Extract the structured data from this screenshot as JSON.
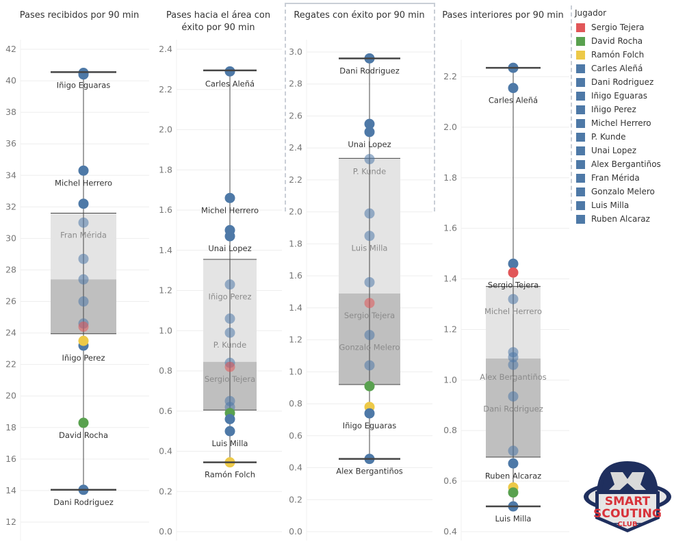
{
  "colors": {
    "Sergio Tejera": "#e15759",
    "David Rocha": "#59a14f",
    "Ramón Folch": "#edc948",
    "default": "#4e79a7",
    "box_upper": "#e4e4e4",
    "box_lower": "#bfbfbf",
    "whisker": "#444444",
    "grid": "#eeeeee"
  },
  "legend": {
    "title": "Jugador",
    "items": [
      {
        "label": "Sergio Tejera",
        "color": "#e15759"
      },
      {
        "label": "David Rocha",
        "color": "#59a14f"
      },
      {
        "label": "Ramón Folch",
        "color": "#edc948"
      },
      {
        "label": "Carles Aleñá",
        "color": "#4e79a7"
      },
      {
        "label": "Dani Rodriguez",
        "color": "#4e79a7"
      },
      {
        "label": "Iñigo Eguaras",
        "color": "#4e79a7"
      },
      {
        "label": "Iñigo Perez",
        "color": "#4e79a7"
      },
      {
        "label": "Michel Herrero",
        "color": "#4e79a7"
      },
      {
        "label": "P. Kunde",
        "color": "#4e79a7"
      },
      {
        "label": "Unai Lopez",
        "color": "#4e79a7"
      },
      {
        "label": "Alex Bergantiños",
        "color": "#4e79a7"
      },
      {
        "label": "Fran Mérida",
        "color": "#4e79a7"
      },
      {
        "label": "Gonzalo Melero",
        "color": "#4e79a7"
      },
      {
        "label": "Luis Milla",
        "color": "#4e79a7"
      },
      {
        "label": "Ruben Alcaraz",
        "color": "#4e79a7"
      }
    ]
  },
  "logo": {
    "line1": "SMART",
    "line2": "SCOUTING",
    "line3": "CLUB"
  },
  "chart_data": [
    {
      "type": "scatter",
      "subtype": "box-plot",
      "title": "Pases recibidos por 90 min",
      "ylim": [
        11,
        43
      ],
      "yticks": [
        12,
        14,
        16,
        18,
        20,
        22,
        24,
        26,
        28,
        30,
        32,
        34,
        36,
        38,
        40,
        42
      ],
      "tick_decimals": 0,
      "box": {
        "whisker_high": 40.55,
        "q3": 31.6,
        "median": 27.4,
        "q1": 23.95,
        "whisker_low": 14.05
      },
      "points": [
        {
          "value": 40.5,
          "player": "Iñigo Eguaras",
          "label": "Iñigo Eguaras"
        },
        {
          "value": 40.4,
          "player": "other",
          "label": ""
        },
        {
          "value": 34.3,
          "player": "Michel Herrero",
          "label": "Michel Herrero"
        },
        {
          "value": 32.2,
          "player": "other",
          "label": ""
        },
        {
          "value": 31.0,
          "player": "Fran Mérida",
          "label": "Fran Mérida"
        },
        {
          "value": 28.7,
          "player": "other",
          "label": ""
        },
        {
          "value": 27.4,
          "player": "other",
          "label": ""
        },
        {
          "value": 26.0,
          "player": "other",
          "label": ""
        },
        {
          "value": 24.6,
          "player": "other",
          "label": ""
        },
        {
          "value": 24.4,
          "player": "Sergio Tejera",
          "label": ""
        },
        {
          "value": 23.2,
          "player": "Iñigo Perez",
          "label": "Iñigo Perez"
        },
        {
          "value": 23.5,
          "player": "Ramón Folch",
          "label": ""
        },
        {
          "value": 18.3,
          "player": "David Rocha",
          "label": "David Rocha"
        },
        {
          "value": 14.05,
          "player": "Dani Rodriguez",
          "label": "Dani Rodriguez"
        }
      ]
    },
    {
      "type": "scatter",
      "subtype": "box-plot",
      "title": "Pases hacia el área con éxito por 90 min",
      "ylim": [
        0,
        2.48
      ],
      "yticks": [
        0.0,
        0.2,
        0.4,
        0.6,
        0.8,
        1.0,
        1.2,
        1.4,
        1.6,
        1.8,
        2.0,
        2.2,
        2.4
      ],
      "tick_decimals": 1,
      "box": {
        "whisker_high": 2.295,
        "q3": 1.355,
        "median": 0.845,
        "q1": 0.605,
        "whisker_low": 0.345
      },
      "points": [
        {
          "value": 2.29,
          "player": "Carles Aleñá",
          "label": "Carles Aleñá"
        },
        {
          "value": 1.66,
          "player": "Michel Herrero",
          "label": "Michel Herrero"
        },
        {
          "value": 1.5,
          "player": "other",
          "label": ""
        },
        {
          "value": 1.47,
          "player": "Unai Lopez",
          "label": "Unai Lopez"
        },
        {
          "value": 1.23,
          "player": "Iñigo Perez",
          "label": "Iñigo Perez"
        },
        {
          "value": 1.06,
          "player": "other",
          "label": ""
        },
        {
          "value": 0.99,
          "player": "P. Kunde",
          "label": "P. Kunde"
        },
        {
          "value": 0.84,
          "player": "other",
          "label": ""
        },
        {
          "value": 0.82,
          "player": "Sergio Tejera",
          "label": "Sergio Tejera"
        },
        {
          "value": 0.65,
          "player": "other",
          "label": ""
        },
        {
          "value": 0.62,
          "player": "other",
          "label": ""
        },
        {
          "value": 0.59,
          "player": "David Rocha",
          "label": ""
        },
        {
          "value": 0.56,
          "player": "other",
          "label": ""
        },
        {
          "value": 0.5,
          "player": "Luis Milla",
          "label": "Luis Milla"
        },
        {
          "value": 0.345,
          "player": "Ramón Folch",
          "label": "Ramón Folch"
        }
      ]
    },
    {
      "type": "scatter",
      "subtype": "box-plot",
      "title": "Regates con éxito por 90 min",
      "ylim": [
        0,
        3.15
      ],
      "yticks": [
        0.0,
        0.2,
        0.4,
        0.6,
        0.8,
        1.0,
        1.2,
        1.4,
        1.6,
        1.8,
        2.0,
        2.2,
        2.4,
        2.6,
        2.8,
        3.0
      ],
      "tick_decimals": 1,
      "box": {
        "whisker_high": 2.96,
        "q3": 2.335,
        "median": 1.49,
        "q1": 0.92,
        "whisker_low": 0.455
      },
      "points": [
        {
          "value": 2.96,
          "player": "Dani Rodriguez",
          "label": "Dani Rodriguez"
        },
        {
          "value": 2.55,
          "player": "other",
          "label": ""
        },
        {
          "value": 2.5,
          "player": "Unai Lopez",
          "label": "Unai Lopez"
        },
        {
          "value": 2.33,
          "player": "P. Kunde",
          "label": "P. Kunde"
        },
        {
          "value": 1.99,
          "player": "other",
          "label": ""
        },
        {
          "value": 1.85,
          "player": "Luis Milla",
          "label": "Luis Milla"
        },
        {
          "value": 1.56,
          "player": "other",
          "label": ""
        },
        {
          "value": 1.43,
          "player": "Sergio Tejera",
          "label": "Sergio Tejera"
        },
        {
          "value": 1.23,
          "player": "Gonzalo Melero",
          "label": "Gonzalo Melero"
        },
        {
          "value": 1.04,
          "player": "other",
          "label": ""
        },
        {
          "value": 0.91,
          "player": "David Rocha",
          "label": ""
        },
        {
          "value": 0.78,
          "player": "Ramón Folch",
          "label": ""
        },
        {
          "value": 0.74,
          "player": "Iñigo Eguaras",
          "label": "Iñigo Eguaras"
        },
        {
          "value": 0.455,
          "player": "Alex Bergantiños",
          "label": "Alex Bergantiños"
        }
      ]
    },
    {
      "type": "scatter",
      "subtype": "box-plot",
      "title": "Pases interiores por 90 min",
      "ylim": [
        0.4,
        2.44
      ],
      "yticks": [
        0.4,
        0.6,
        0.8,
        1.0,
        1.2,
        1.4,
        1.6,
        1.8,
        2.0,
        2.2
      ],
      "tick_decimals": 1,
      "box": {
        "whisker_high": 2.235,
        "q3": 1.37,
        "median": 1.085,
        "q1": 0.695,
        "whisker_low": 0.5
      },
      "points": [
        {
          "value": 2.235,
          "player": "other",
          "label": ""
        },
        {
          "value": 2.155,
          "player": "Carles Aleñá",
          "label": "Carles Aleñá"
        },
        {
          "value": 1.46,
          "player": "other",
          "label": ""
        },
        {
          "value": 1.425,
          "player": "Sergio Tejera",
          "label": "Sergio Tejera"
        },
        {
          "value": 1.32,
          "player": "Michel Herrero",
          "label": "Michel Herrero"
        },
        {
          "value": 1.11,
          "player": "other",
          "label": ""
        },
        {
          "value": 1.09,
          "player": "other",
          "label": ""
        },
        {
          "value": 1.06,
          "player": "Alex Bergantiños",
          "label": "Alex Bergantiños"
        },
        {
          "value": 0.935,
          "player": "Dani Rodriguez",
          "label": "Dani Rodriguez"
        },
        {
          "value": 0.72,
          "player": "other",
          "label": ""
        },
        {
          "value": 0.67,
          "player": "Ruben Alcaraz",
          "label": "Ruben Alcaraz"
        },
        {
          "value": 0.575,
          "player": "Ramón Folch",
          "label": ""
        },
        {
          "value": 0.555,
          "player": "David Rocha",
          "label": ""
        },
        {
          "value": 0.5,
          "player": "Luis Milla",
          "label": "Luis Milla"
        }
      ]
    }
  ]
}
